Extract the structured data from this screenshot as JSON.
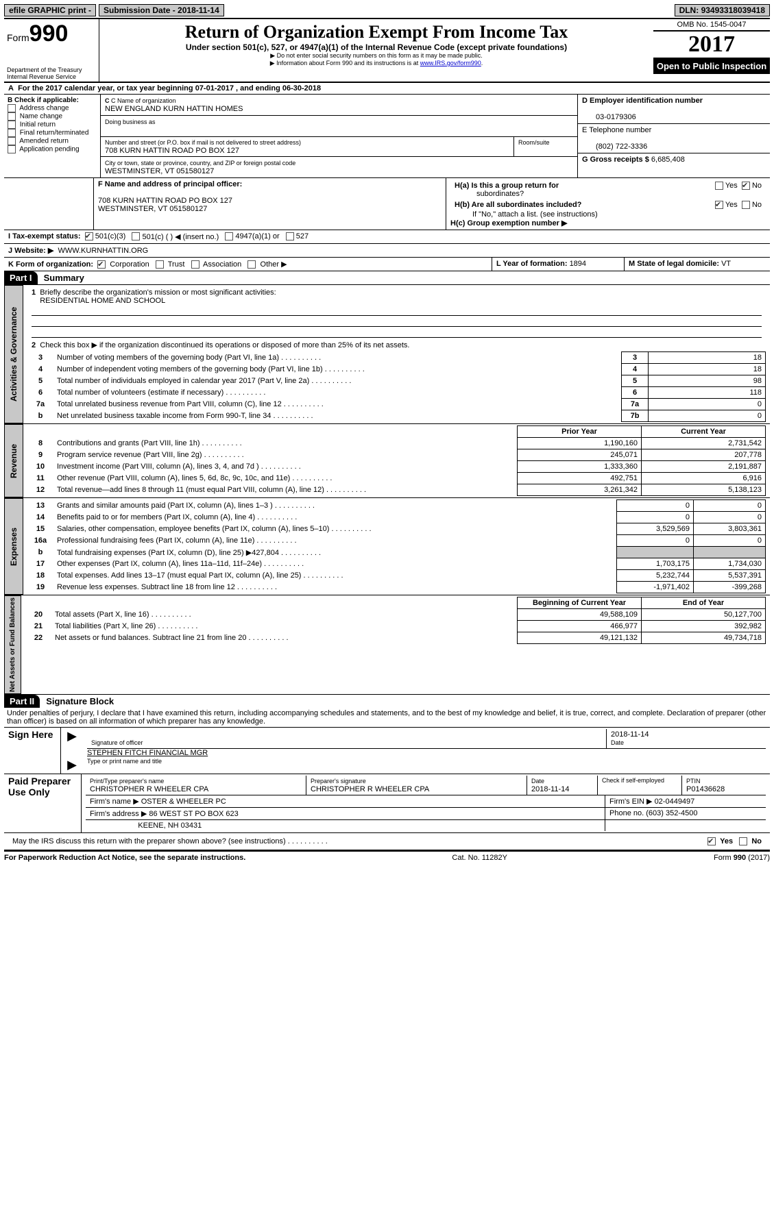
{
  "topbar": {
    "efile": "efile GRAPHIC print -",
    "submission_label": "Submission Date - ",
    "submission_date": "2018-11-14",
    "dln_label": "DLN: ",
    "dln": "93493318039418"
  },
  "header": {
    "form_word": "Form",
    "form_no": "990",
    "dept1": "Department of the Treasury",
    "dept2": "Internal Revenue Service",
    "title": "Return of Organization Exempt From Income Tax",
    "subtitle": "Under section 501(c), 527, or 4947(a)(1) of the Internal Revenue Code (except private foundations)",
    "note1": "▶ Do not enter social security numbers on this form as it may be made public.",
    "note2_a": "▶ Information about Form 990 and its instructions is at ",
    "note2_link": "www.IRS.gov/form990",
    "omb": "OMB No. 1545-0047",
    "year": "2017",
    "open": "Open to Public Inspection"
  },
  "a_line": {
    "label_a": "A",
    "text1": "For the 2017 calendar year, or tax year beginning ",
    "begin": "07-01-2017",
    "mid": "   , and ending ",
    "end": "06-30-2018"
  },
  "b": {
    "title": "B Check if applicable:",
    "opts": [
      "Address change",
      "Name change",
      "Initial return",
      "Final return/terminated",
      "Amended return",
      "Application pending"
    ]
  },
  "c": {
    "name_label": "C Name of organization",
    "name": "NEW ENGLAND KURN HATTIN HOMES",
    "dba_label": "Doing business as",
    "addr_label": "Number and street (or P.O. box if mail is not delivered to street address)",
    "room_label": "Room/suite",
    "addr": "708 KURN HATTIN ROAD PO BOX 127",
    "city_label": "City or town, state or province, country, and ZIP or foreign postal code",
    "city": "WESTMINSTER, VT  051580127"
  },
  "d": {
    "label": "D Employer identification number",
    "val": "03-0179306"
  },
  "e": {
    "label": "E Telephone number",
    "val": "(802) 722-3336"
  },
  "g": {
    "label": "G Gross receipts $ ",
    "val": "6,685,408"
  },
  "f": {
    "label": "F  Name and address of principal officer:",
    "addr1": "708 KURN HATTIN ROAD PO BOX 127",
    "addr2": "WESTMINSTER, VT  051580127"
  },
  "h": {
    "a_label": "H(a)  Is this a group return for",
    "a_label2": "subordinates?",
    "b_label": "H(b)  Are all subordinates included?",
    "b_note": "If \"No,\" attach a list. (see instructions)",
    "c_label": "H(c)  Group exemption number ▶",
    "yes": "Yes",
    "no": "No"
  },
  "i": {
    "label": "I   Tax-exempt status:",
    "o1": "501(c)(3)",
    "o2": "501(c) (    ) ◀ (insert no.)",
    "o3": "4947(a)(1) or",
    "o4": "527"
  },
  "j": {
    "label": "J   Website: ▶",
    "val": "WWW.KURNHATTIN.ORG"
  },
  "k": {
    "label": "K Form of organization:",
    "o1": "Corporation",
    "o2": "Trust",
    "o3": "Association",
    "o4": "Other ▶"
  },
  "l": {
    "label": "L Year of formation: ",
    "val": "1894"
  },
  "m": {
    "label": "M State of legal domicile: ",
    "val": "VT"
  },
  "part1": {
    "hdr": "Part I",
    "title": "Summary"
  },
  "gov": {
    "tab": "Activities & Governance",
    "l1": "Briefly describe the organization's mission or most significant activities:",
    "l1v": "RESIDENTIAL HOME AND SCHOOL",
    "l2": "Check this box ▶        if the organization discontinued its operations or disposed of more than 25% of its net assets.",
    "rows": [
      {
        "n": "3",
        "t": "Number of voting members of the governing body (Part VI, line 1a)",
        "c": "3",
        "v": "18"
      },
      {
        "n": "4",
        "t": "Number of independent voting members of the governing body (Part VI, line 1b)",
        "c": "4",
        "v": "18"
      },
      {
        "n": "5",
        "t": "Total number of individuals employed in calendar year 2017 (Part V, line 2a)",
        "c": "5",
        "v": "98"
      },
      {
        "n": "6",
        "t": "Total number of volunteers (estimate if necessary)",
        "c": "6",
        "v": "118"
      },
      {
        "n": "7a",
        "t": "Total unrelated business revenue from Part VIII, column (C), line 12",
        "c": "7a",
        "v": "0"
      },
      {
        "n": "b",
        "t": "Net unrelated business taxable income from Form 990-T, line 34",
        "c": "7b",
        "v": "0"
      }
    ]
  },
  "rev": {
    "tab": "Revenue",
    "h1": "Prior Year",
    "h2": "Current Year",
    "rows": [
      {
        "n": "8",
        "t": "Contributions and grants (Part VIII, line 1h)",
        "p": "1,190,160",
        "c": "2,731,542"
      },
      {
        "n": "9",
        "t": "Program service revenue (Part VIII, line 2g)",
        "p": "245,071",
        "c": "207,778"
      },
      {
        "n": "10",
        "t": "Investment income (Part VIII, column (A), lines 3, 4, and 7d )",
        "p": "1,333,360",
        "c": "2,191,887"
      },
      {
        "n": "11",
        "t": "Other revenue (Part VIII, column (A), lines 5, 6d, 8c, 9c, 10c, and 11e)",
        "p": "492,751",
        "c": "6,916"
      },
      {
        "n": "12",
        "t": "Total revenue—add lines 8 through 11 (must equal Part VIII, column (A), line 12)",
        "p": "3,261,342",
        "c": "5,138,123"
      }
    ]
  },
  "exp": {
    "tab": "Expenses",
    "rows": [
      {
        "n": "13",
        "t": "Grants and similar amounts paid (Part IX, column (A), lines 1–3 )",
        "p": "0",
        "c": "0"
      },
      {
        "n": "14",
        "t": "Benefits paid to or for members (Part IX, column (A), line 4)",
        "p": "0",
        "c": "0"
      },
      {
        "n": "15",
        "t": "Salaries, other compensation, employee benefits (Part IX, column (A), lines 5–10)",
        "p": "3,529,569",
        "c": "3,803,361"
      },
      {
        "n": "16a",
        "t": "Professional fundraising fees (Part IX, column (A), line 11e)",
        "p": "0",
        "c": "0"
      },
      {
        "n": "b",
        "t": "Total fundraising expenses (Part IX, column (D), line 25) ▶427,804",
        "p": "",
        "c": "",
        "shade": true
      },
      {
        "n": "17",
        "t": "Other expenses (Part IX, column (A), lines 11a–11d, 11f–24e)",
        "p": "1,703,175",
        "c": "1,734,030"
      },
      {
        "n": "18",
        "t": "Total expenses. Add lines 13–17 (must equal Part IX, column (A), line 25)",
        "p": "5,232,744",
        "c": "5,537,391"
      },
      {
        "n": "19",
        "t": "Revenue less expenses. Subtract line 18 from line 12",
        "p": "-1,971,402",
        "c": "-399,268"
      }
    ]
  },
  "net": {
    "tab": "Net Assets or Fund Balances",
    "h1": "Beginning of Current Year",
    "h2": "End of Year",
    "rows": [
      {
        "n": "20",
        "t": "Total assets (Part X, line 16)",
        "p": "49,588,109",
        "c": "50,127,700"
      },
      {
        "n": "21",
        "t": "Total liabilities (Part X, line 26)",
        "p": "466,977",
        "c": "392,982"
      },
      {
        "n": "22",
        "t": "Net assets or fund balances. Subtract line 21 from line 20",
        "p": "49,121,132",
        "c": "49,734,718"
      }
    ]
  },
  "part2": {
    "hdr": "Part II",
    "title": "Signature Block",
    "decl": "Under penalties of perjury, I declare that I have examined this return, including accompanying schedules and statements, and to the best of my knowledge and belief, it is true, correct, and complete. Declaration of preparer (other than officer) is based on all information of which preparer has any knowledge."
  },
  "sign": {
    "label": "Sign Here",
    "sig_label": "Signature of officer",
    "date_label": "Date",
    "date": "2018-11-14",
    "name": "STEPHEN FITCH  FINANCIAL MGR",
    "name_label": "Type or print name and title"
  },
  "paid": {
    "label": "Paid Preparer Use Only",
    "r1": {
      "c1l": "Print/Type preparer's name",
      "c1": "CHRISTOPHER R WHEELER CPA",
      "c2l": "Preparer's signature",
      "c2": "CHRISTOPHER R WHEELER CPA",
      "c3l": "Date",
      "c3": "2018-11-14",
      "c4l": "Check        if self-employed",
      "c5l": "PTIN",
      "c5": "P01436628"
    },
    "r2": {
      "l": "Firm's name      ▶",
      "v": "OSTER & WHEELER PC",
      "einl": "Firm's EIN ▶",
      "ein": "02-0449497"
    },
    "r3": {
      "l": "Firm's address ▶",
      "v1": "86 WEST ST PO BOX 623",
      "phl": "Phone no. ",
      "ph": "(603) 352-4500"
    },
    "r4": {
      "v": "KEENE, NH  03431"
    }
  },
  "discuss": {
    "t": "May the IRS discuss this return with the preparer shown above? (see instructions)",
    "yes": "Yes",
    "no": "No"
  },
  "footer": {
    "l": "For Paperwork Reduction Act Notice, see the separate instructions.",
    "m": "Cat. No. 11282Y",
    "r": "Form 990 (2017)"
  }
}
